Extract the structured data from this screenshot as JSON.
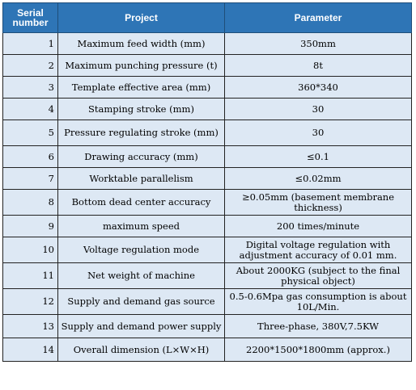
{
  "headers": {
    "serial": "Serial number",
    "project": "Project",
    "parameter": "Parameter"
  },
  "rows": [
    {
      "serial": "1",
      "project": "Maximum feed width (mm)",
      "parameter": "350mm"
    },
    {
      "serial": "2",
      "project": "Maximum punching pressure (t)",
      "parameter": "8t"
    },
    {
      "serial": "3",
      "project": "Template effective area (mm)",
      "parameter": "360*340"
    },
    {
      "serial": "4",
      "project": "Stamping stroke (mm)",
      "parameter": "30"
    },
    {
      "serial": "5",
      "project": "Pressure regulating stroke (mm)",
      "parameter": "30"
    },
    {
      "serial": "6",
      "project": "Drawing accuracy (mm)",
      "parameter": "≤0.1"
    },
    {
      "serial": "7",
      "project": "Worktable parallelism",
      "parameter": "≤0.02mm"
    },
    {
      "serial": "8",
      "project": "Bottom dead center accuracy",
      "parameter": "≥0.05mm (basement membrane thickness)"
    },
    {
      "serial": "9",
      "project": "maximum speed",
      "parameter": "200 times/minute"
    },
    {
      "serial": "10",
      "project": "Voltage regulation mode",
      "parameter": "Digital voltage regulation with adjustment accuracy of 0.01 mm."
    },
    {
      "serial": "11",
      "project": "Net weight of machine",
      "parameter": "About 2000KG (subject to the final physical object)"
    },
    {
      "serial": "12",
      "project": "Supply and demand gas source",
      "parameter": "0.5-0.6Mpa gas consumption is about 10L/Min."
    },
    {
      "serial": "13",
      "project": "Supply and demand power supply",
      "parameter": "Three-phase, 380V,7.5KW"
    },
    {
      "serial": "14",
      "project": "Overall dimension (L×W×H)",
      "parameter": "2200*1500*1800mm (approx.)"
    }
  ]
}
